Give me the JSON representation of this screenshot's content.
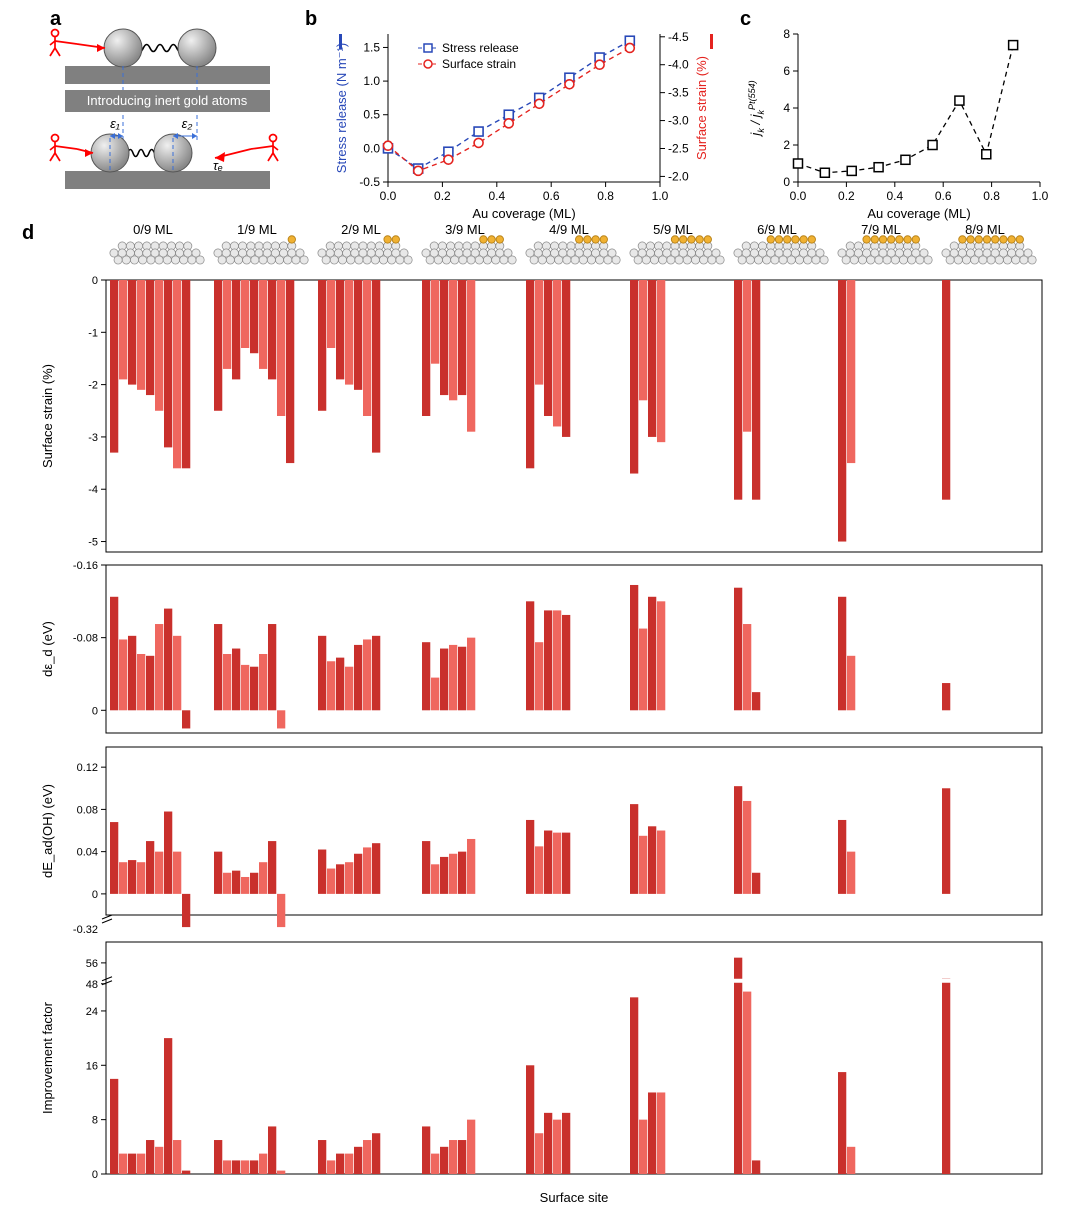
{
  "labels": {
    "a": "a",
    "b": "b",
    "c": "c",
    "d": "d"
  },
  "panel_a": {
    "box_color": "#808080",
    "atom_fill": "#bfbfbf",
    "atom_stroke": "#555555",
    "spring_color": "#000000",
    "arrow_color": "#ff0000",
    "guide_color": "#3a6fd8",
    "text": "Introducing inert gold atoms",
    "eps1": "ε₁",
    "eps2": "ε₂",
    "tau": "τₑ"
  },
  "panel_b": {
    "xlabel": "Au coverage (ML)",
    "ylabel_left": "Stress release (N m⁻¹)",
    "ylabel_right": "Surface strain (%)",
    "legend": {
      "stress": "Stress release",
      "strain": "Surface strain"
    },
    "left_color": "#2848b8",
    "right_color": "#e4231f",
    "x": [
      0,
      0.111,
      0.222,
      0.333,
      0.444,
      0.556,
      0.667,
      0.778,
      0.889
    ],
    "stress": [
      0,
      -0.3,
      -0.05,
      0.25,
      0.5,
      0.75,
      1.05,
      1.35,
      1.6
    ],
    "strain": [
      -2.55,
      -2.1,
      -2.3,
      -2.6,
      -2.95,
      -3.3,
      -3.65,
      -4.0,
      -4.3
    ],
    "xlim": [
      0,
      1.0
    ],
    "xtick_step": 0.2,
    "ylim_left": [
      -0.5,
      1.7
    ],
    "ytick_left": [
      -0.5,
      0,
      0.5,
      1.0,
      1.5
    ],
    "ylim_right": [
      -1.9,
      -4.55
    ],
    "ytick_right": [
      -2.0,
      -2.5,
      -3.0,
      -3.5,
      -4.0,
      -4.5
    ]
  },
  "panel_c": {
    "xlabel": "Au coverage (ML)",
    "ylabel": "jₖ / jₖᴾᵗ⁽⁵⁵⁴⁾",
    "color": "#000000",
    "x": [
      0,
      0.111,
      0.222,
      0.333,
      0.444,
      0.556,
      0.667,
      0.778,
      0.889
    ],
    "y": [
      1.0,
      0.5,
      0.6,
      0.8,
      1.2,
      2.0,
      4.4,
      1.5,
      7.4
    ],
    "xlim": [
      0,
      1.0
    ],
    "xtick_step": 0.2,
    "ylim": [
      0,
      8
    ],
    "ytick_step": 2
  },
  "panel_d": {
    "groups": [
      "0/9 ML",
      "1/9 ML",
      "2/9 ML",
      "3/9 ML",
      "4/9 ML",
      "5/9 ML",
      "6/9 ML",
      "7/9 ML",
      "8/9 ML"
    ],
    "gold_counts": [
      0,
      1,
      2,
      3,
      4,
      5,
      6,
      7,
      8
    ],
    "xlabel": "Surface site",
    "colors": [
      "#c9302c",
      "#ef675f"
    ],
    "atom_fill": "#e8e8e8",
    "atom_stroke": "#888888",
    "gold_fill": "#f0b132",
    "gold_stroke": "#b8831a",
    "rows": [
      {
        "ylabel": "Surface strain (%)",
        "ylim": [
          -5.2,
          0
        ],
        "yticks": [
          0,
          -1,
          -2,
          -3,
          -4,
          -5
        ],
        "data": [
          [
            -3.3,
            -1.9,
            -2.0,
            -2.1,
            -2.2,
            -2.5,
            -3.2,
            -3.6,
            -3.6
          ],
          [
            -2.5,
            -1.7,
            -1.9,
            -1.3,
            -1.4,
            -1.7,
            -1.9,
            -2.6,
            -3.5
          ],
          [
            -2.5,
            -1.3,
            -1.9,
            -2.0,
            -2.1,
            -2.6,
            -3.3
          ],
          [
            -2.6,
            -1.6,
            -2.2,
            -2.3,
            -2.2,
            -2.9
          ],
          [
            -3.6,
            -2.0,
            -2.6,
            -2.8,
            -3.0
          ],
          [
            -3.7,
            -2.3,
            -3.0,
            -3.1
          ],
          [
            -4.2,
            -2.9,
            -4.2
          ],
          [
            -5.0,
            -3.5
          ],
          [
            -4.2
          ]
        ]
      },
      {
        "ylabel": "dε_d (eV)",
        "ylim": [
          0.025,
          -0.16
        ],
        "yticks": [
          -0.16,
          -0.08,
          0
        ],
        "data": [
          [
            -0.125,
            -0.078,
            -0.082,
            -0.062,
            -0.06,
            -0.095,
            -0.112,
            -0.082,
            0.02
          ],
          [
            -0.095,
            -0.062,
            -0.068,
            -0.05,
            -0.048,
            -0.062,
            -0.095,
            0.02
          ],
          [
            -0.082,
            -0.054,
            -0.058,
            -0.048,
            -0.072,
            -0.078,
            -0.082
          ],
          [
            -0.075,
            -0.036,
            -0.068,
            -0.072,
            -0.07,
            -0.08
          ],
          [
            -0.12,
            -0.075,
            -0.11,
            -0.11,
            -0.105
          ],
          [
            -0.138,
            -0.09,
            -0.125,
            -0.12
          ],
          [
            -0.135,
            -0.095,
            -0.02
          ],
          [
            -0.125,
            -0.06
          ],
          [
            -0.03
          ]
        ]
      },
      {
        "ylabel": "dE_ad(OH) (eV)",
        "ylim": [
          -0.02,
          0.12
        ],
        "yticks": [
          0,
          0.04,
          0.08,
          0.12
        ],
        "break_from": -0.02,
        "break_to": -0.32,
        "data": [
          [
            0.068,
            0.03,
            0.032,
            0.03,
            0.05,
            0.04,
            0.078,
            0.04,
            -0.32
          ],
          [
            0.04,
            0.02,
            0.022,
            0.016,
            0.02,
            0.03,
            0.05,
            -0.32
          ],
          [
            0.042,
            0.024,
            0.028,
            0.03,
            0.038,
            0.044,
            0.048
          ],
          [
            0.05,
            0.028,
            0.035,
            0.038,
            0.04,
            0.052
          ],
          [
            0.07,
            0.045,
            0.06,
            0.058,
            0.058
          ],
          [
            0.085,
            0.055,
            0.064,
            0.06
          ],
          [
            0.102,
            0.088,
            0.02
          ],
          [
            0.07,
            0.04
          ],
          [
            0.1
          ]
        ]
      },
      {
        "ylabel": "Improvement factor",
        "ylim": [
          0,
          28
        ],
        "yticks": [
          0,
          8,
          16,
          24
        ],
        "break_from": 28,
        "break_to": 48,
        "yticks_upper": [
          48,
          56
        ],
        "data": [
          [
            14,
            3,
            3,
            3,
            5,
            4,
            20,
            5,
            0.5
          ],
          [
            5,
            2,
            2,
            2,
            2,
            3,
            7,
            0.5
          ],
          [
            5,
            2,
            3,
            3,
            4,
            5,
            6
          ],
          [
            7,
            3,
            4,
            5,
            5,
            8
          ],
          [
            16,
            6,
            9,
            8,
            9
          ],
          [
            26,
            8,
            12,
            12
          ],
          [
            58,
            45,
            2
          ],
          [
            15,
            4
          ],
          [
            50
          ]
        ]
      }
    ]
  }
}
